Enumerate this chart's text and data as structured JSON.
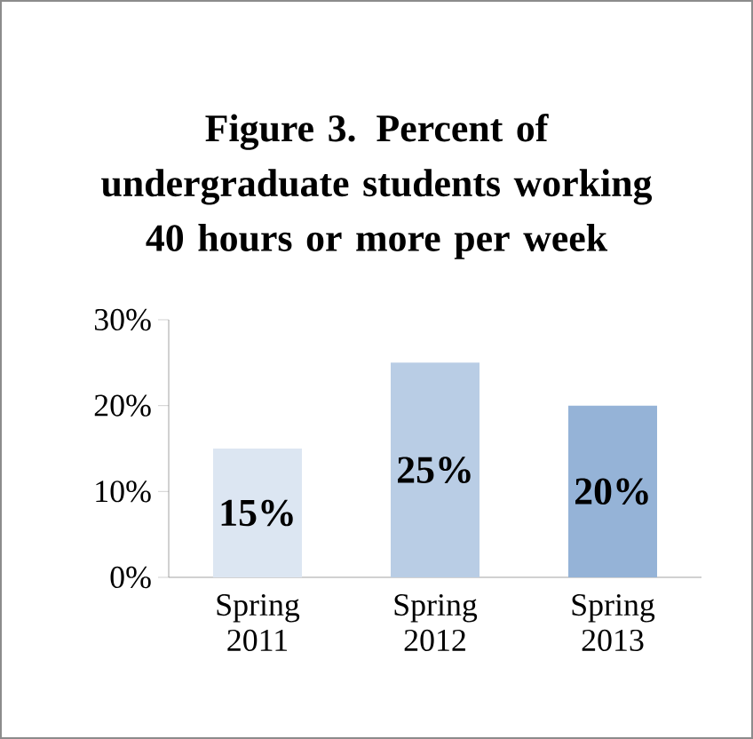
{
  "chart_data": {
    "type": "bar",
    "title": "Figure 3.   Percent of undergraduate students working 40 hours or more per week",
    "categories": [
      "Spring 2011",
      "Spring 2012",
      "Spring 2013"
    ],
    "values": [
      15,
      25,
      20
    ],
    "colors": [
      "#dce6f2",
      "#b9cde5",
      "#95b3d7"
    ],
    "value_labels": [
      "15%",
      "25%",
      "20%"
    ],
    "ylim": [
      0,
      30
    ],
    "yticks": [
      {
        "value": 0,
        "label": "0%"
      },
      {
        "value": 10,
        "label": "10%"
      },
      {
        "value": 20,
        "label": "20%"
      },
      {
        "value": 30,
        "label": "30%"
      }
    ]
  }
}
